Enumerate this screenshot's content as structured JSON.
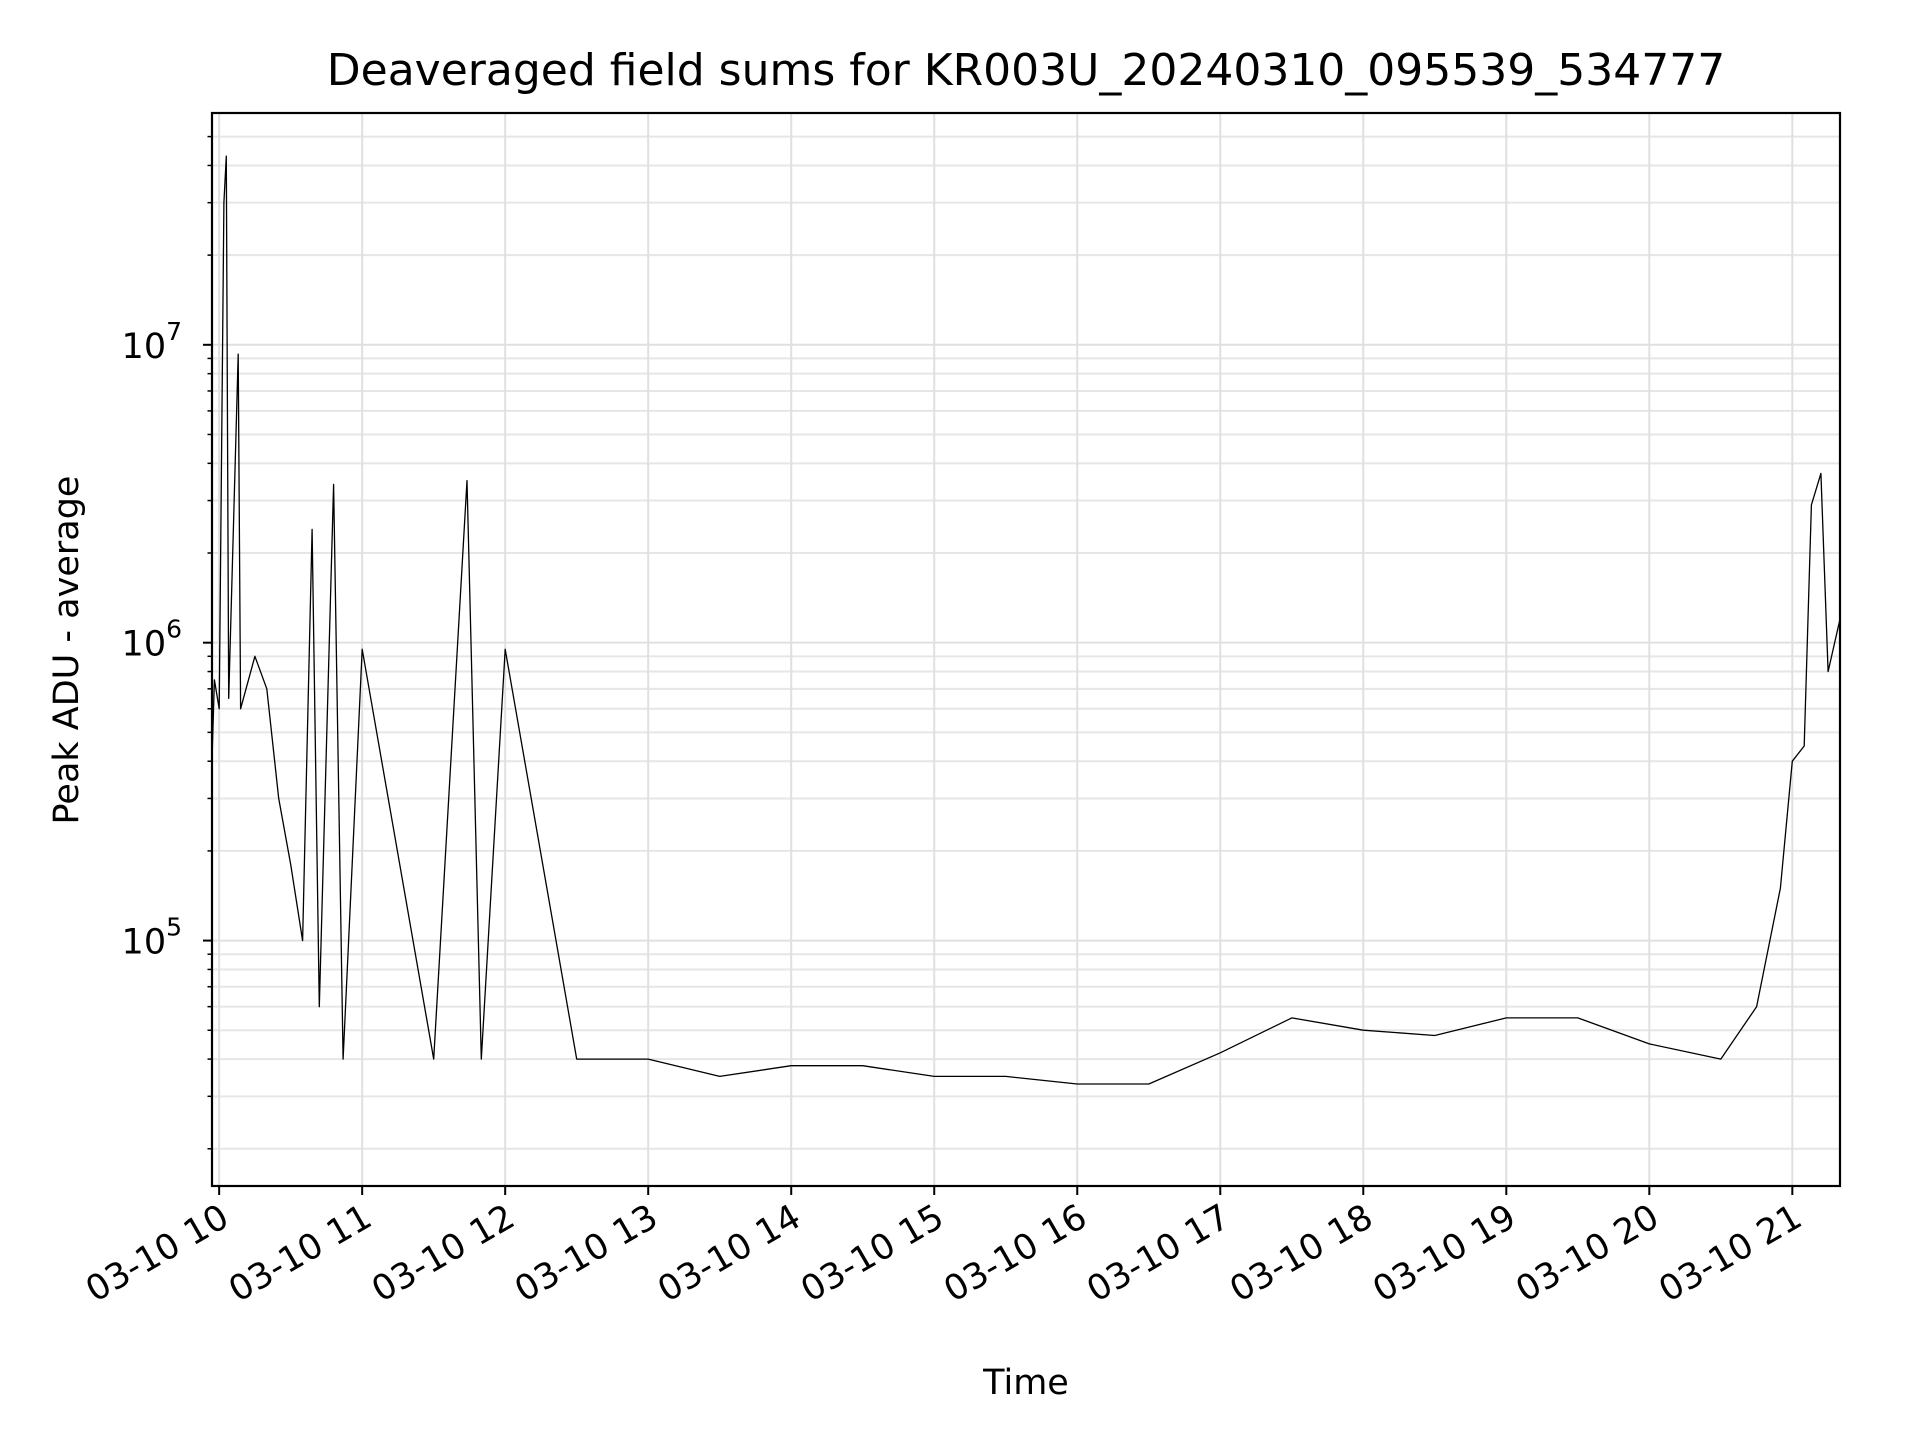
{
  "chart_data": {
    "type": "line",
    "title": "Deaveraged field sums for KR003U_20240310_095539_534777",
    "xlabel": "Time",
    "ylabel": "Peak ADU - average",
    "x_type": "datetime",
    "xlim": [
      "2024-03-10 09:57",
      "2024-03-10 21:20"
    ],
    "ylim": [
      15000,
      60000000
    ],
    "y_scale": "log",
    "grid": true,
    "grid_minor": true,
    "legend": "none",
    "line_color": "#000000",
    "x_ticks": [
      {
        "value": "2024-03-10 10:00",
        "label": "03-10 10"
      },
      {
        "value": "2024-03-10 11:00",
        "label": "03-10 11"
      },
      {
        "value": "2024-03-10 12:00",
        "label": "03-10 12"
      },
      {
        "value": "2024-03-10 13:00",
        "label": "03-10 13"
      },
      {
        "value": "2024-03-10 14:00",
        "label": "03-10 14"
      },
      {
        "value": "2024-03-10 15:00",
        "label": "03-10 15"
      },
      {
        "value": "2024-03-10 16:00",
        "label": "03-10 16"
      },
      {
        "value": "2024-03-10 17:00",
        "label": "03-10 17"
      },
      {
        "value": "2024-03-10 18:00",
        "label": "03-10 18"
      },
      {
        "value": "2024-03-10 19:00",
        "label": "03-10 19"
      },
      {
        "value": "2024-03-10 20:00",
        "label": "03-10 20"
      },
      {
        "value": "2024-03-10 21:00",
        "label": "03-10 21"
      }
    ],
    "y_ticks": [
      {
        "value": 100000,
        "base": "10",
        "exp": "5"
      },
      {
        "value": 1000000,
        "base": "10",
        "exp": "6"
      },
      {
        "value": 10000000,
        "base": "10",
        "exp": "7"
      }
    ],
    "series": [
      {
        "values": [
          [
            "2024-03-10 09:57",
            400000
          ],
          [
            "2024-03-10 09:58",
            750000
          ],
          [
            "2024-03-10 10:00",
            600000
          ],
          [
            "2024-03-10 10:02",
            30000000
          ],
          [
            "2024-03-10 10:03",
            43000000
          ],
          [
            "2024-03-10 10:04",
            650000
          ],
          [
            "2024-03-10 10:08",
            9300000
          ],
          [
            "2024-03-10 10:09",
            600000
          ],
          [
            "2024-03-10 10:15",
            900000
          ],
          [
            "2024-03-10 10:20",
            700000
          ],
          [
            "2024-03-10 10:25",
            300000
          ],
          [
            "2024-03-10 10:30",
            180000
          ],
          [
            "2024-03-10 10:35",
            100000
          ],
          [
            "2024-03-10 10:39",
            2400000
          ],
          [
            "2024-03-10 10:42",
            60000
          ],
          [
            "2024-03-10 10:48",
            3400000
          ],
          [
            "2024-03-10 10:52",
            40000
          ],
          [
            "2024-03-10 11:00",
            950000
          ],
          [
            "2024-03-10 11:30",
            40000
          ],
          [
            "2024-03-10 11:44",
            3500000
          ],
          [
            "2024-03-10 11:50",
            40000
          ],
          [
            "2024-03-10 12:00",
            950000
          ],
          [
            "2024-03-10 12:30",
            40000
          ],
          [
            "2024-03-10 13:00",
            40000
          ],
          [
            "2024-03-10 13:30",
            35000
          ],
          [
            "2024-03-10 14:00",
            38000
          ],
          [
            "2024-03-10 14:30",
            38000
          ],
          [
            "2024-03-10 15:00",
            35000
          ],
          [
            "2024-03-10 15:30",
            35000
          ],
          [
            "2024-03-10 16:00",
            33000
          ],
          [
            "2024-03-10 16:30",
            33000
          ],
          [
            "2024-03-10 17:00",
            42000
          ],
          [
            "2024-03-10 17:30",
            55000
          ],
          [
            "2024-03-10 18:00",
            50000
          ],
          [
            "2024-03-10 18:30",
            48000
          ],
          [
            "2024-03-10 19:00",
            55000
          ],
          [
            "2024-03-10 19:30",
            55000
          ],
          [
            "2024-03-10 20:00",
            45000
          ],
          [
            "2024-03-10 20:30",
            40000
          ],
          [
            "2024-03-10 20:45",
            60000
          ],
          [
            "2024-03-10 20:55",
            150000
          ],
          [
            "2024-03-10 21:00",
            400000
          ],
          [
            "2024-03-10 21:05",
            450000
          ],
          [
            "2024-03-10 21:08",
            2900000
          ],
          [
            "2024-03-10 21:12",
            3700000
          ],
          [
            "2024-03-10 21:15",
            800000
          ],
          [
            "2024-03-10 21:20",
            1200000
          ]
        ]
      }
    ]
  }
}
